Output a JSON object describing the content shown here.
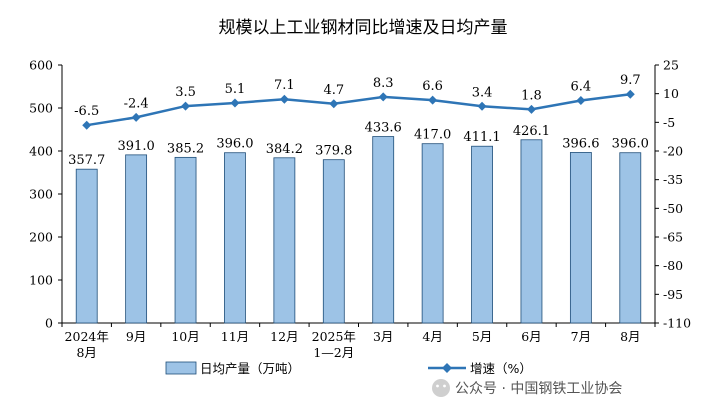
{
  "chart_data": {
    "type": "bar",
    "title": "规模以上工业钢材同比增速及日均产量",
    "categories": [
      {
        "line1": "2024年",
        "line2": "8月"
      },
      {
        "line1": "9月",
        "line2": ""
      },
      {
        "line1": "10月",
        "line2": ""
      },
      {
        "line1": "11月",
        "line2": ""
      },
      {
        "line1": "12月",
        "line2": ""
      },
      {
        "line1": "2025年",
        "line2": "1—2月"
      },
      {
        "line1": "3月",
        "line2": ""
      },
      {
        "line1": "4月",
        "line2": ""
      },
      {
        "line1": "5月",
        "line2": ""
      },
      {
        "line1": "6月",
        "line2": ""
      },
      {
        "line1": "7月",
        "line2": ""
      },
      {
        "line1": "8月",
        "line2": ""
      }
    ],
    "series": [
      {
        "name": "日均产量（万吨）",
        "type": "bar",
        "axis": "left",
        "color": "#9dc3e6",
        "values": [
          357.7,
          391.0,
          385.2,
          396.0,
          384.2,
          379.8,
          433.6,
          417.0,
          411.1,
          426.1,
          396.6,
          396.0
        ],
        "labels": [
          "357.7",
          "391.0",
          "385.2",
          "396.0",
          "384.2",
          "379.8",
          "433.6",
          "417.0",
          "411.1",
          "426.1",
          "396.6",
          "396.0"
        ]
      },
      {
        "name": "增速（%）",
        "type": "line",
        "axis": "right",
        "color": "#2e75b6",
        "values": [
          -6.5,
          -2.4,
          3.5,
          5.1,
          7.1,
          4.7,
          8.3,
          6.6,
          3.4,
          1.8,
          6.4,
          9.7
        ],
        "labels": [
          "-6.5",
          "-2.4",
          "3.5",
          "5.1",
          "7.1",
          "4.7",
          "8.3",
          "6.6",
          "3.4",
          "1.8",
          "6.4",
          "9.7"
        ]
      }
    ],
    "y_left": {
      "min": 0,
      "max": 600,
      "step": 100,
      "ticks": [
        "0",
        "100",
        "200",
        "300",
        "400",
        "500",
        "600"
      ]
    },
    "y_right": {
      "min": -110,
      "max": 25,
      "step": 15,
      "ticks": [
        "-110",
        "-95",
        "-80",
        "-65",
        "-50",
        "-35",
        "-20",
        "-5",
        "10",
        "25"
      ]
    },
    "legend_position": "bottom",
    "grid": false
  },
  "watermark": "公众号 · 中国钢铁工业协会"
}
